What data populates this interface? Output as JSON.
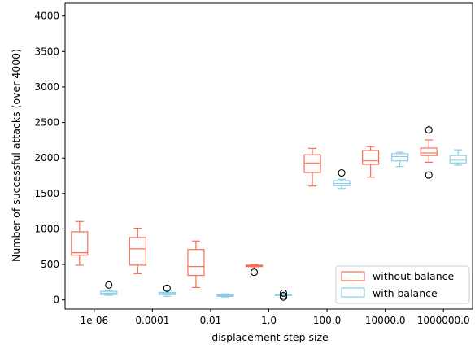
{
  "chart_data": {
    "type": "boxplot",
    "xlabel": "displacement step size",
    "ylabel": "Number of successful attacks (over 4000)",
    "ylim": [
      -130,
      4180
    ],
    "yticks": [
      0,
      500,
      1000,
      1500,
      2000,
      2500,
      3000,
      3500,
      4000
    ],
    "categories": [
      "1e-06",
      "0.0001",
      "0.01",
      "1.0",
      "100.0",
      "10000.0",
      "1000000.0"
    ],
    "grid": false,
    "legend_position": "lower right",
    "series": [
      {
        "name": "without balance",
        "color": "#fa6e55",
        "boxes": [
          {
            "whislo": 490,
            "q1": 630,
            "med": 665,
            "q3": 960,
            "whishi": 1105,
            "fliers": []
          },
          {
            "whislo": 370,
            "q1": 490,
            "med": 720,
            "q3": 880,
            "whishi": 1010,
            "fliers": []
          },
          {
            "whislo": 175,
            "q1": 345,
            "med": 470,
            "q3": 710,
            "whishi": 830,
            "fliers": []
          },
          {
            "whislo": 450,
            "q1": 470,
            "med": 480,
            "q3": 490,
            "whishi": 500,
            "fliers": [
              390
            ]
          },
          {
            "whislo": 1605,
            "q1": 1795,
            "med": 1930,
            "q3": 2045,
            "whishi": 2135,
            "fliers": []
          },
          {
            "whislo": 1730,
            "q1": 1910,
            "med": 1960,
            "q3": 2105,
            "whishi": 2160,
            "fliers": []
          },
          {
            "whislo": 1940,
            "q1": 2035,
            "med": 2070,
            "q3": 2140,
            "whishi": 2255,
            "fliers": [
              1760,
              2395
            ]
          }
        ]
      },
      {
        "name": "with balance",
        "color": "#87cfe9",
        "boxes": [
          {
            "whislo": 65,
            "q1": 75,
            "med": 95,
            "q3": 120,
            "whishi": 130,
            "fliers": [
              210
            ]
          },
          {
            "whislo": 50,
            "q1": 75,
            "med": 90,
            "q3": 105,
            "whishi": 130,
            "fliers": [
              165
            ]
          },
          {
            "whislo": 40,
            "q1": 50,
            "med": 60,
            "q3": 70,
            "whishi": 85,
            "fliers": []
          },
          {
            "whislo": 58,
            "q1": 62,
            "med": 68,
            "q3": 80,
            "whishi": 85,
            "fliers": [
              40,
              60,
              95
            ]
          },
          {
            "whislo": 1570,
            "q1": 1610,
            "med": 1640,
            "q3": 1680,
            "whishi": 1700,
            "fliers": [
              1790
            ]
          },
          {
            "whislo": 1880,
            "q1": 1960,
            "med": 2020,
            "q3": 2060,
            "whishi": 2080,
            "fliers": []
          },
          {
            "whislo": 1900,
            "q1": 1930,
            "med": 1970,
            "q3": 2035,
            "whishi": 2115,
            "fliers": []
          }
        ]
      }
    ]
  }
}
